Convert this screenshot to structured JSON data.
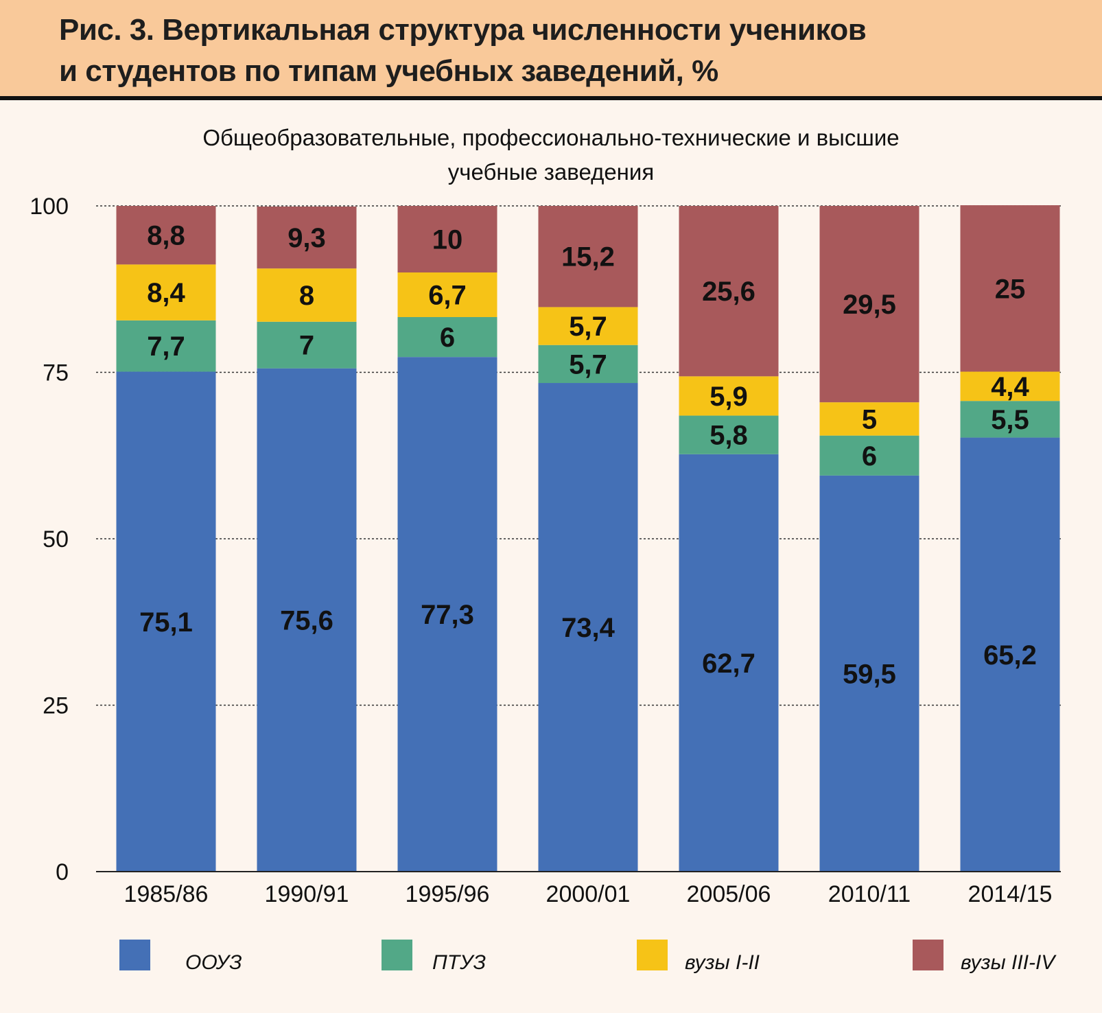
{
  "chart_data": {
    "type": "bar",
    "stacked": true,
    "title": "Рис. 3. Вертикальная структура численности учеников и студентов по типам учебных заведений, %",
    "title_lines": [
      "Рис. 3. Вертикальная структура численности учеников",
      "и студентов по типам учебных заведений, %"
    ],
    "subtitle_lines": [
      "Общеобразовательные, профессионально-технические и высшие",
      "учебные заведения"
    ],
    "xlabel": "",
    "ylabel": "",
    "ylim": [
      0,
      100
    ],
    "yticks": [
      0,
      25,
      50,
      75,
      100
    ],
    "grid": true,
    "legend_position": "bottom",
    "categories": [
      "1985/86",
      "1990/91",
      "1995/96",
      "2000/01",
      "2005/06",
      "2010/11",
      "2014/15"
    ],
    "series": [
      {
        "name": "ООУЗ",
        "color": "#4470b6",
        "values": [
          75.1,
          75.6,
          77.3,
          73.4,
          62.7,
          59.5,
          65.2
        ],
        "labels": [
          "75,1",
          "75,6",
          "77,3",
          "73,4",
          "62,7",
          "59,5",
          "65,2"
        ]
      },
      {
        "name": "ПТУЗ",
        "color": "#52a887",
        "values": [
          7.7,
          7,
          6,
          5.7,
          5.8,
          6,
          5.5
        ],
        "labels": [
          "7,7",
          "7",
          "6",
          "5,7",
          "5,8",
          "6",
          "5,5"
        ]
      },
      {
        "name": "вузы I-II",
        "color": "#f6c317",
        "values": [
          8.4,
          8,
          6.7,
          5.7,
          5.9,
          5,
          4.4
        ],
        "labels": [
          "8,4",
          "8",
          "6,7",
          "5,7",
          "5,9",
          "5",
          "4,4"
        ]
      },
      {
        "name": "вузы III-IV",
        "color": "#a8595b",
        "values": [
          8.8,
          9.3,
          10,
          15.2,
          25.6,
          29.5,
          25
        ],
        "labels": [
          "8,8",
          "9,3",
          "10",
          "15,2",
          "25,6",
          "29,5",
          "25"
        ]
      }
    ]
  }
}
